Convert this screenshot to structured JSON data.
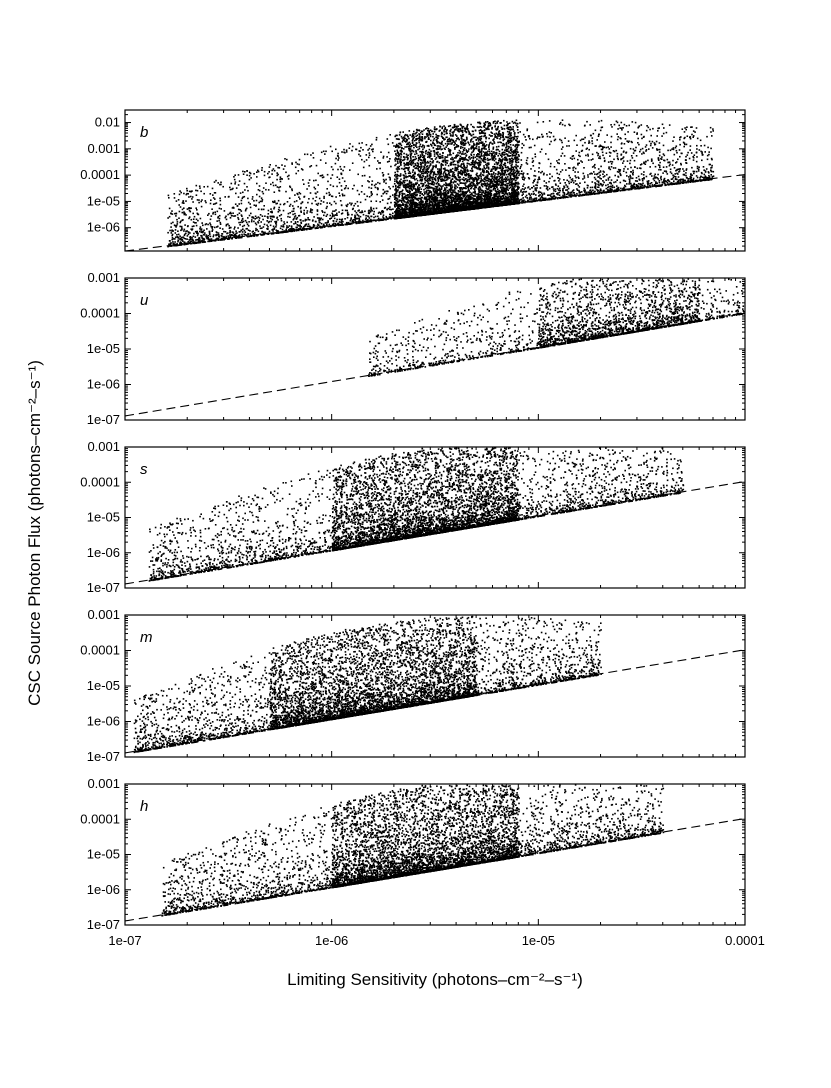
{
  "chart_data": {
    "type": "scatter",
    "figure_y_label": "CSC Source Photon Flux (photons–cm⁻²–s⁻¹)",
    "figure_x_label": "Limiting Sensitivity (photons–cm⁻²–s⁻¹)",
    "x_scale": "log",
    "y_scale": "log",
    "xlim": [
      1e-07,
      0.0001
    ],
    "x_ticks": [
      {
        "value": 1e-07,
        "label": "1e-07"
      },
      {
        "value": 1e-06,
        "label": "1e-06"
      },
      {
        "value": 1e-05,
        "label": "1e-05"
      },
      {
        "value": 0.0001,
        "label": "0.0001"
      }
    ],
    "reference_line": {
      "style": "dashed",
      "points": [
        [
          1e-07,
          1.3e-07
        ],
        [
          0.0001,
          0.000105
        ]
      ]
    },
    "marker_color": "#000000",
    "panels": [
      {
        "label": "b",
        "ylim": [
          1.3e-07,
          0.03
        ],
        "y_ticks": [
          {
            "value": 1e-06,
            "label": "1e-06"
          },
          {
            "value": 1e-05,
            "label": "1e-05"
          },
          {
            "value": 0.0001,
            "label": "0.0001"
          },
          {
            "value": 0.001,
            "label": "0.001"
          },
          {
            "value": 0.01,
            "label": "0.01"
          }
        ],
        "density_profile": {
          "x_range": [
            1.6e-07,
            7e-05
          ],
          "peak_x": [
            2e-06,
            8e-06
          ],
          "max_ratio": 2000,
          "points": 9000
        }
      },
      {
        "label": "u",
        "ylim": [
          1e-07,
          0.001
        ],
        "y_ticks": [
          {
            "value": 1e-07,
            "label": "1e-07"
          },
          {
            "value": 1e-06,
            "label": "1e-06"
          },
          {
            "value": 1e-05,
            "label": "1e-05"
          },
          {
            "value": 0.0001,
            "label": "0.0001"
          },
          {
            "value": 0.001,
            "label": "0.001"
          }
        ],
        "density_profile": {
          "x_range": [
            1.5e-06,
            0.0001
          ],
          "peak_x": [
            1e-05,
            6e-05
          ],
          "max_ratio": 60,
          "points": 2600
        }
      },
      {
        "label": "s",
        "ylim": [
          1e-07,
          0.001
        ],
        "y_ticks": [
          {
            "value": 1e-07,
            "label": "1e-07"
          },
          {
            "value": 1e-06,
            "label": "1e-06"
          },
          {
            "value": 1e-05,
            "label": "1e-05"
          },
          {
            "value": 0.0001,
            "label": "0.0001"
          },
          {
            "value": 0.001,
            "label": "0.001"
          }
        ],
        "density_profile": {
          "x_range": [
            1.3e-07,
            5e-05
          ],
          "peak_x": [
            1e-06,
            8e-06
          ],
          "max_ratio": 300,
          "points": 7000
        }
      },
      {
        "label": "m",
        "ylim": [
          1e-07,
          0.001
        ],
        "y_ticks": [
          {
            "value": 1e-07,
            "label": "1e-07"
          },
          {
            "value": 1e-06,
            "label": "1e-06"
          },
          {
            "value": 1e-05,
            "label": "1e-05"
          },
          {
            "value": 0.0001,
            "label": "0.0001"
          },
          {
            "value": 0.001,
            "label": "0.001"
          }
        ],
        "density_profile": {
          "x_range": [
            1.1e-07,
            2e-05
          ],
          "peak_x": [
            5e-07,
            5e-06
          ],
          "max_ratio": 300,
          "points": 7000
        }
      },
      {
        "label": "h",
        "ylim": [
          1e-07,
          0.001
        ],
        "y_ticks": [
          {
            "value": 1e-07,
            "label": "1e-07"
          },
          {
            "value": 1e-06,
            "label": "1e-06"
          },
          {
            "value": 1e-05,
            "label": "1e-05"
          },
          {
            "value": 0.0001,
            "label": "0.0001"
          },
          {
            "value": 0.001,
            "label": "0.001"
          }
        ],
        "density_profile": {
          "x_range": [
            1.5e-07,
            4e-05
          ],
          "peak_x": [
            1e-06,
            8e-06
          ],
          "max_ratio": 300,
          "points": 7000
        }
      }
    ]
  }
}
